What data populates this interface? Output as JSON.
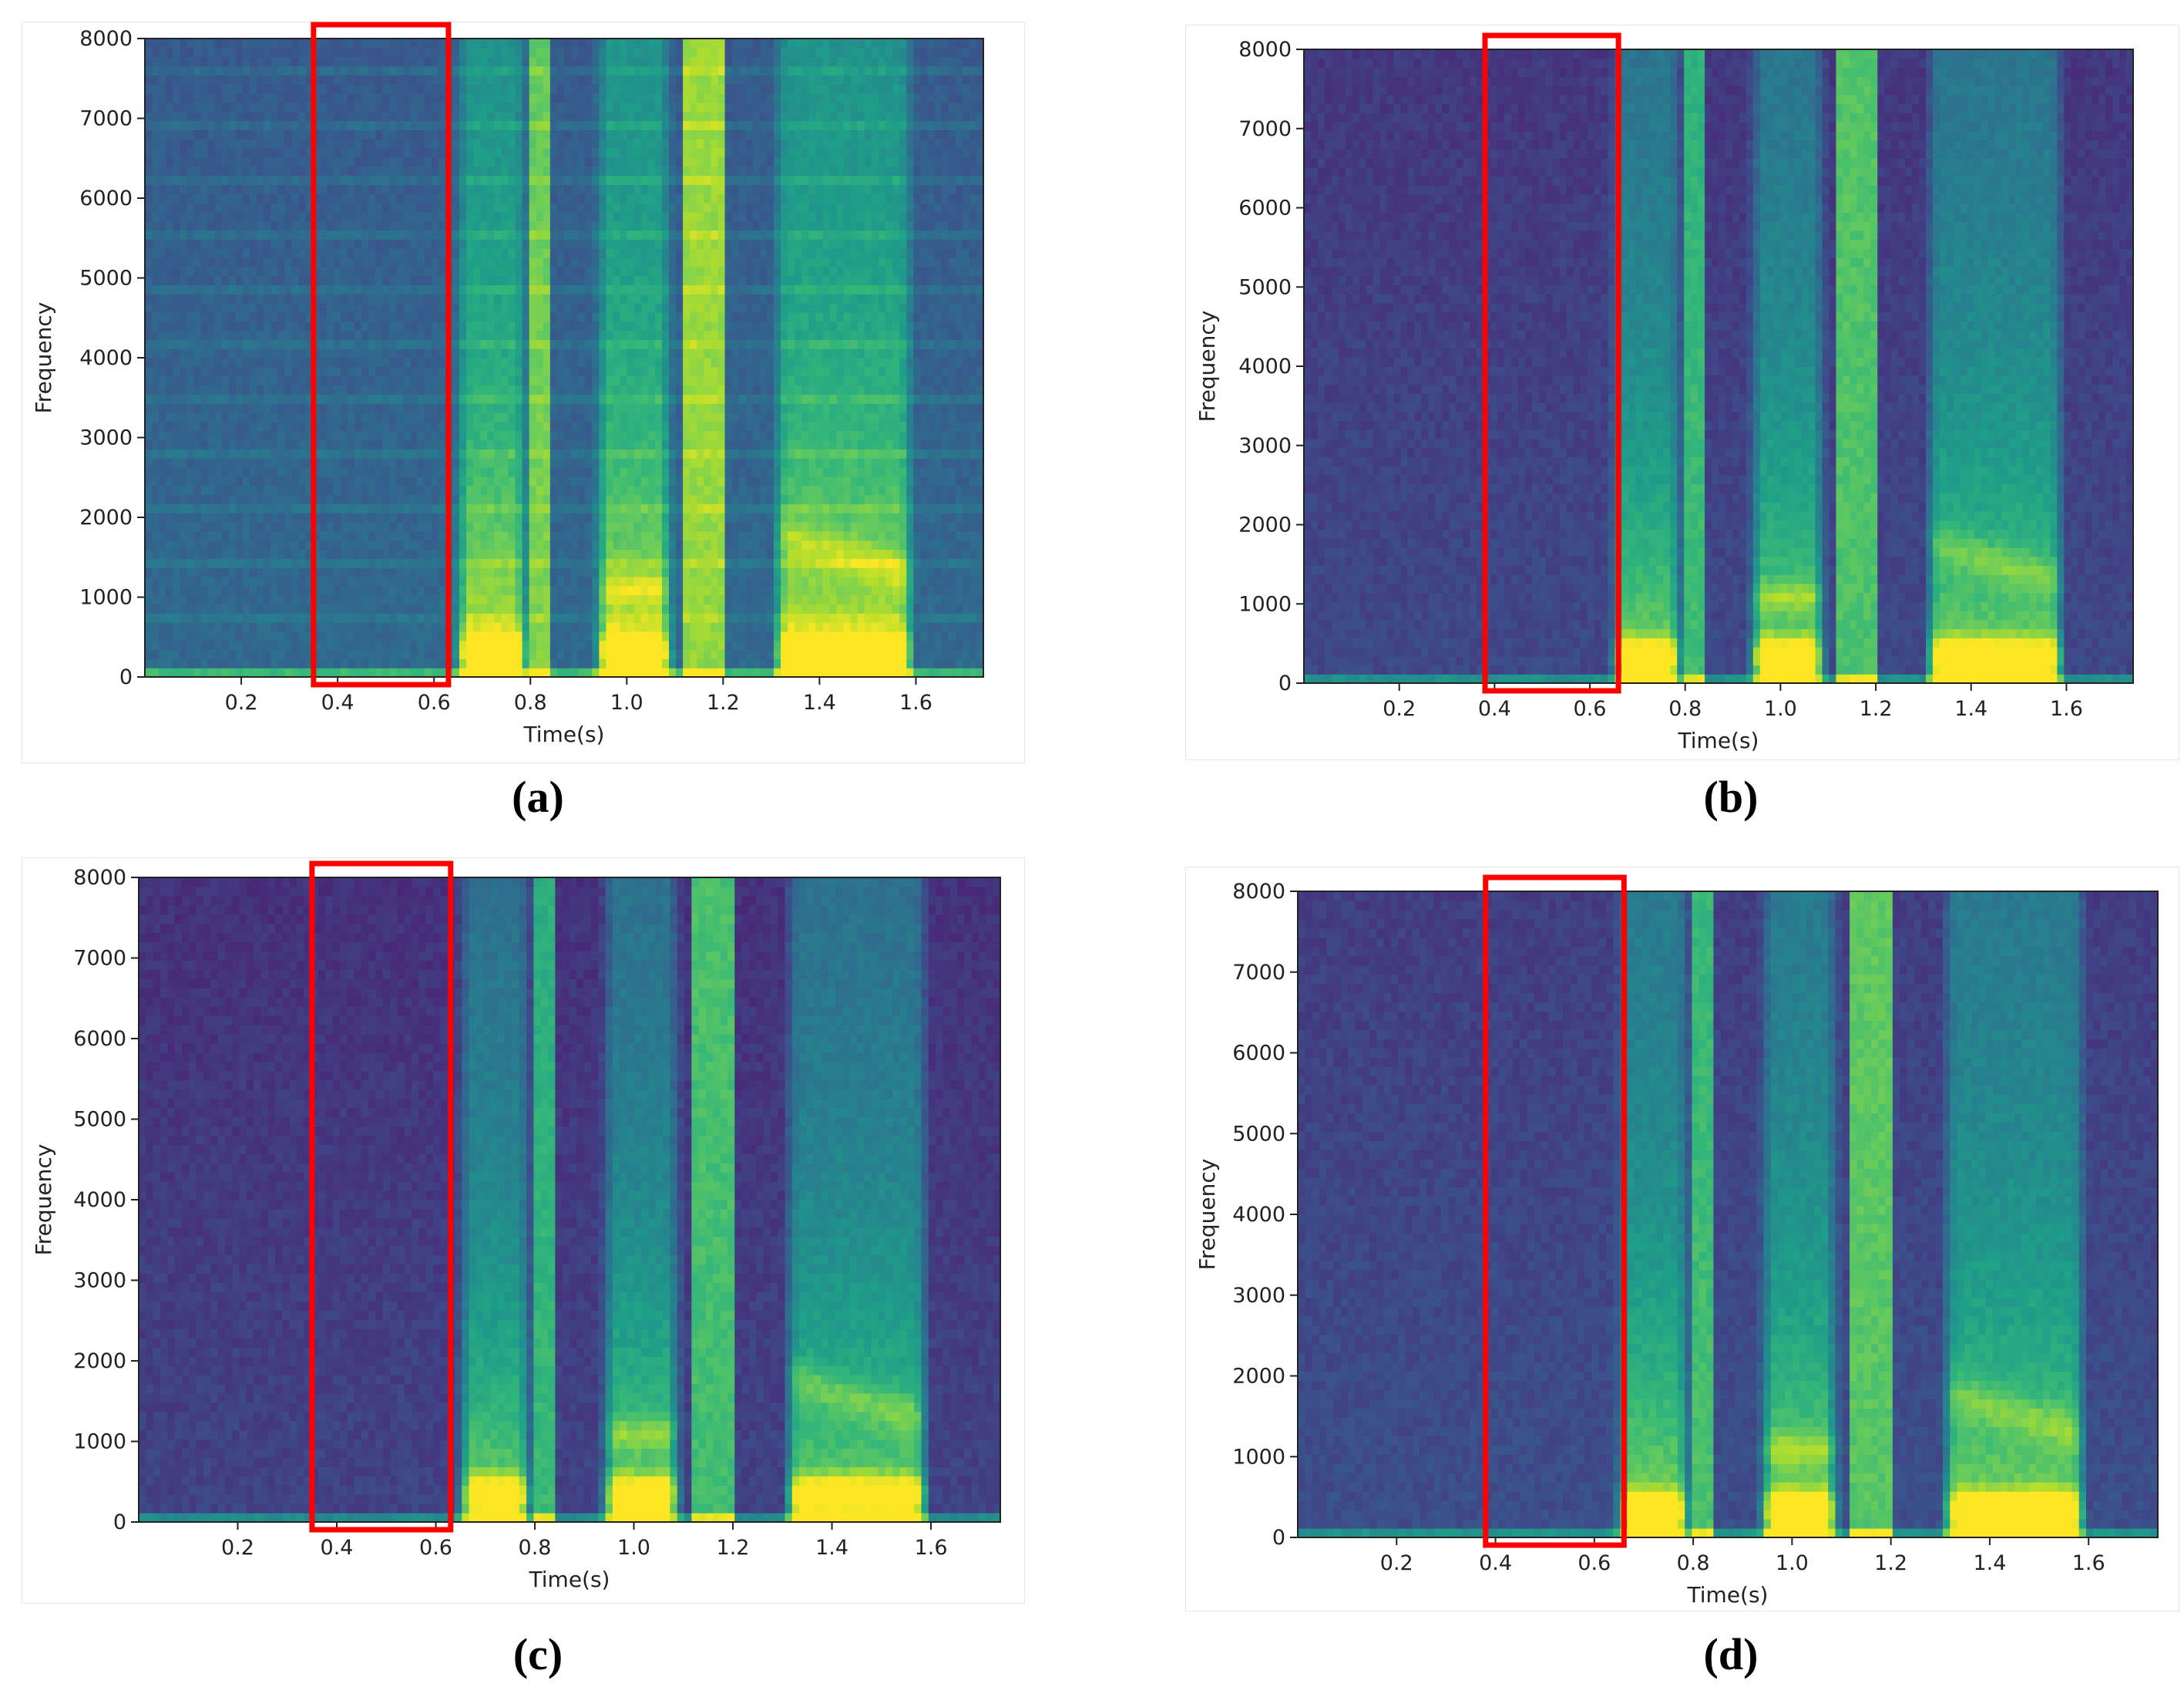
{
  "colors": {
    "highlight_box": "#ff0000",
    "axis": "#222222",
    "colormap": "viridis"
  },
  "captions": {
    "a": "(a)",
    "b": "(b)",
    "c": "(c)",
    "d": "(d)"
  },
  "chart_data": [
    {
      "id": "a",
      "type": "heatmap",
      "kind": "spectrogram",
      "title": "",
      "xlabel": "Time(s)",
      "ylabel": "Frequency",
      "xlim": [
        0.0,
        1.74
      ],
      "ylim": [
        0,
        8000
      ],
      "xticks": [
        0.2,
        0.4,
        0.6,
        0.8,
        1.0,
        1.2,
        1.4,
        1.6
      ],
      "xtick_labels": [
        "0.2",
        "0.4",
        "0.6",
        "0.8",
        "1.0",
        "1.2",
        "1.4",
        "1.6"
      ],
      "yticks": [
        0,
        1000,
        2000,
        3000,
        4000,
        5000,
        6000,
        7000,
        8000
      ],
      "ytick_labels": [
        "0",
        "1000",
        "2000",
        "3000",
        "4000",
        "5000",
        "6000",
        "7000",
        "8000"
      ],
      "highlight_time_range_s": [
        0.35,
        0.63
      ],
      "noise_level": 0.34,
      "harmonic_noise_lines": true
    },
    {
      "id": "b",
      "type": "heatmap",
      "kind": "spectrogram",
      "title": "",
      "xlabel": "Time(s)",
      "ylabel": "Frequency",
      "xlim": [
        0.0,
        1.74
      ],
      "ylim": [
        0,
        8000
      ],
      "xticks": [
        0.2,
        0.4,
        0.6,
        0.8,
        1.0,
        1.2,
        1.4,
        1.6
      ],
      "xtick_labels": [
        "0.2",
        "0.4",
        "0.6",
        "0.8",
        "1.0",
        "1.2",
        "1.4",
        "1.6"
      ],
      "yticks": [
        0,
        1000,
        2000,
        3000,
        4000,
        5000,
        6000,
        7000,
        8000
      ],
      "ytick_labels": [
        "0",
        "1000",
        "2000",
        "3000",
        "4000",
        "5000",
        "6000",
        "7000",
        "8000"
      ],
      "highlight_time_range_s": [
        0.38,
        0.66
      ],
      "noise_level": 0.22,
      "harmonic_noise_lines": false
    },
    {
      "id": "c",
      "type": "heatmap",
      "kind": "spectrogram",
      "title": "",
      "xlabel": "Time(s)",
      "ylabel": "Frequency",
      "xlim": [
        0.0,
        1.74
      ],
      "ylim": [
        0,
        8000
      ],
      "xticks": [
        0.2,
        0.4,
        0.6,
        0.8,
        1.0,
        1.2,
        1.4,
        1.6
      ],
      "xtick_labels": [
        "0.2",
        "0.4",
        "0.6",
        "0.8",
        "1.0",
        "1.2",
        "1.4",
        "1.6"
      ],
      "yticks": [
        0,
        1000,
        2000,
        3000,
        4000,
        5000,
        6000,
        7000,
        8000
      ],
      "ytick_labels": [
        "0",
        "1000",
        "2000",
        "3000",
        "4000",
        "5000",
        "6000",
        "7000",
        "8000"
      ],
      "highlight_time_range_s": [
        0.35,
        0.63
      ],
      "noise_level": 0.2,
      "harmonic_noise_lines": false
    },
    {
      "id": "d",
      "type": "heatmap",
      "kind": "spectrogram",
      "title": "",
      "xlabel": "Time(s)",
      "ylabel": "Frequency",
      "xlim": [
        0.0,
        1.74
      ],
      "ylim": [
        0,
        8000
      ],
      "xticks": [
        0.2,
        0.4,
        0.6,
        0.8,
        1.0,
        1.2,
        1.4,
        1.6
      ],
      "xtick_labels": [
        "0.2",
        "0.4",
        "0.6",
        "0.8",
        "1.0",
        "1.2",
        "1.4",
        "1.6"
      ],
      "yticks": [
        0,
        1000,
        2000,
        3000,
        4000,
        5000,
        6000,
        7000,
        8000
      ],
      "ytick_labels": [
        "0",
        "1000",
        "2000",
        "3000",
        "4000",
        "5000",
        "6000",
        "7000",
        "8000"
      ],
      "highlight_time_range_s": [
        0.38,
        0.66
      ],
      "noise_level": 0.24,
      "harmonic_noise_lines": false
    }
  ]
}
